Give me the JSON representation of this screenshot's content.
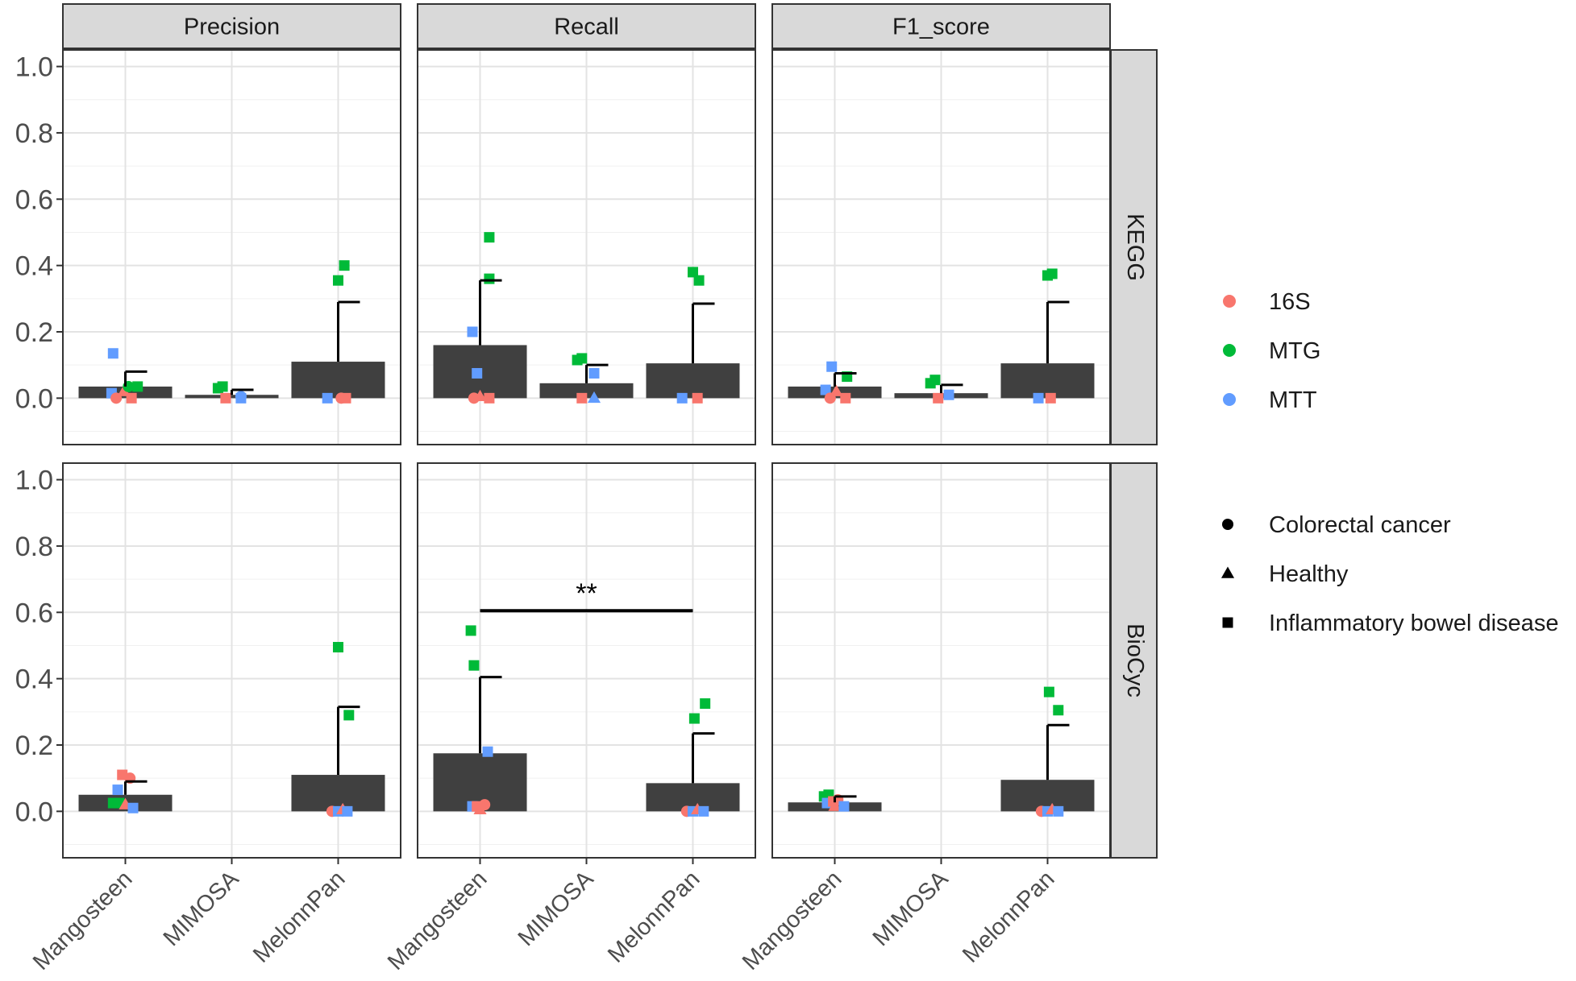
{
  "chart_data": {
    "type": "bar",
    "title": "",
    "xlabel": "",
    "ylabel": "",
    "ylim": [
      -0.14,
      1.05
    ],
    "yticks": [
      0.0,
      0.2,
      0.4,
      0.6,
      0.8,
      1.0
    ],
    "ytick_labels": [
      "0.0",
      "0.2",
      "0.4",
      "0.6",
      "0.8",
      "1.0"
    ],
    "categories": [
      "Mangosteen",
      "MIMOSA",
      "MelonnPan"
    ],
    "metrics": [
      "Precision",
      "Recall",
      "F1_score"
    ],
    "databases": [
      "KEGG",
      "BioCyc"
    ],
    "legend_color": {
      "items": [
        {
          "label": "16S",
          "color": "#F8766D"
        },
        {
          "label": "MTG",
          "color": "#00BA38"
        },
        {
          "label": "MTT",
          "color": "#619CFF"
        }
      ]
    },
    "legend_shape": {
      "items": [
        {
          "label": "Colorectal cancer",
          "shape": "circle"
        },
        {
          "label": "Healthy",
          "shape": "triangle"
        },
        {
          "label": "Inflammatory bowel disease",
          "shape": "square"
        }
      ]
    },
    "bar_color": "#404040",
    "panels": [
      {
        "metric": "Precision",
        "database": "KEGG",
        "bars": [
          {
            "category": "Mangosteen",
            "mean": 0.035,
            "upper": 0.08
          },
          {
            "category": "MIMOSA",
            "mean": 0.01,
            "upper": 0.025
          },
          {
            "category": "MelonnPan",
            "mean": 0.11,
            "upper": 0.29
          }
        ],
        "points": [
          {
            "category": "Mangosteen",
            "j": -0.4,
            "y": 0.135,
            "source": "MTT",
            "shape": "square"
          },
          {
            "category": "Mangosteen",
            "j": -0.45,
            "y": 0.015,
            "source": "MTT",
            "shape": "square"
          },
          {
            "category": "Mangosteen",
            "j": -0.3,
            "y": 0.0,
            "source": "16S",
            "shape": "circle"
          },
          {
            "category": "Mangosteen",
            "j": -0.05,
            "y": 0.02,
            "source": "16S",
            "shape": "triangle"
          },
          {
            "category": "Mangosteen",
            "j": 0.2,
            "y": 0.0,
            "source": "16S",
            "shape": "square"
          },
          {
            "category": "Mangosteen",
            "j": 0.1,
            "y": 0.035,
            "source": "MTG",
            "shape": "circle"
          },
          {
            "category": "Mangosteen",
            "j": 0.4,
            "y": 0.035,
            "source": "MTG",
            "shape": "square"
          },
          {
            "category": "MIMOSA",
            "j": -0.45,
            "y": 0.03,
            "source": "MTG",
            "shape": "square"
          },
          {
            "category": "MIMOSA",
            "j": -0.3,
            "y": 0.035,
            "source": "MTG",
            "shape": "square"
          },
          {
            "category": "MIMOSA",
            "j": -0.2,
            "y": 0.0,
            "source": "16S",
            "shape": "square"
          },
          {
            "category": "MIMOSA",
            "j": 0.3,
            "y": 0.005,
            "source": "MTT",
            "shape": "circle"
          },
          {
            "category": "MIMOSA",
            "j": 0.3,
            "y": 0.0,
            "source": "MTT",
            "shape": "square"
          },
          {
            "category": "MelonnPan",
            "j": -0.35,
            "y": 0.0,
            "source": "MTT",
            "shape": "square"
          },
          {
            "category": "MelonnPan",
            "j": 0.1,
            "y": 0.0,
            "source": "16S",
            "shape": "circle"
          },
          {
            "category": "MelonnPan",
            "j": 0.25,
            "y": 0.0,
            "source": "16S",
            "shape": "square"
          },
          {
            "category": "MelonnPan",
            "j": 0.0,
            "y": 0.355,
            "source": "MTG",
            "shape": "square"
          },
          {
            "category": "MelonnPan",
            "j": 0.2,
            "y": 0.4,
            "source": "MTG",
            "shape": "square"
          }
        ]
      },
      {
        "metric": "Recall",
        "database": "KEGG",
        "bars": [
          {
            "category": "Mangosteen",
            "mean": 0.16,
            "upper": 0.355
          },
          {
            "category": "MIMOSA",
            "mean": 0.045,
            "upper": 0.1
          },
          {
            "category": "MelonnPan",
            "mean": 0.105,
            "upper": 0.285
          }
        ],
        "points": [
          {
            "category": "Mangosteen",
            "j": -0.25,
            "y": 0.2,
            "source": "MTT",
            "shape": "square"
          },
          {
            "category": "Mangosteen",
            "j": -0.1,
            "y": 0.075,
            "source": "MTT",
            "shape": "square"
          },
          {
            "category": "Mangosteen",
            "j": -0.2,
            "y": 0.0,
            "source": "16S",
            "shape": "circle"
          },
          {
            "category": "Mangosteen",
            "j": 0.0,
            "y": 0.005,
            "source": "16S",
            "shape": "triangle"
          },
          {
            "category": "Mangosteen",
            "j": 0.3,
            "y": 0.0,
            "source": "16S",
            "shape": "square"
          },
          {
            "category": "Mangosteen",
            "j": 0.3,
            "y": 0.36,
            "source": "MTG",
            "shape": "square"
          },
          {
            "category": "Mangosteen",
            "j": 0.3,
            "y": 0.485,
            "source": "MTG",
            "shape": "square"
          },
          {
            "category": "MIMOSA",
            "j": -0.3,
            "y": 0.115,
            "source": "MTG",
            "shape": "square"
          },
          {
            "category": "MIMOSA",
            "j": -0.15,
            "y": 0.12,
            "source": "MTG",
            "shape": "square"
          },
          {
            "category": "MIMOSA",
            "j": -0.15,
            "y": 0.0,
            "source": "16S",
            "shape": "square"
          },
          {
            "category": "MIMOSA",
            "j": 0.25,
            "y": 0.075,
            "source": "MTT",
            "shape": "square"
          },
          {
            "category": "MIMOSA",
            "j": 0.25,
            "y": 0.0,
            "source": "MTT",
            "shape": "triangle"
          },
          {
            "category": "MelonnPan",
            "j": -0.35,
            "y": 0.0,
            "source": "MTT",
            "shape": "square"
          },
          {
            "category": "MelonnPan",
            "j": 0.15,
            "y": 0.0,
            "source": "16S",
            "shape": "square"
          },
          {
            "category": "MelonnPan",
            "j": 0.0,
            "y": 0.38,
            "source": "MTG",
            "shape": "square"
          },
          {
            "category": "MelonnPan",
            "j": 0.2,
            "y": 0.355,
            "source": "MTG",
            "shape": "square"
          }
        ]
      },
      {
        "metric": "F1_score",
        "database": "KEGG",
        "bars": [
          {
            "category": "Mangosteen",
            "mean": 0.035,
            "upper": 0.075
          },
          {
            "category": "MIMOSA",
            "mean": 0.015,
            "upper": 0.04
          },
          {
            "category": "MelonnPan",
            "mean": 0.105,
            "upper": 0.29
          }
        ],
        "points": [
          {
            "category": "Mangosteen",
            "j": -0.1,
            "y": 0.095,
            "source": "MTT",
            "shape": "square"
          },
          {
            "category": "Mangosteen",
            "j": -0.3,
            "y": 0.025,
            "source": "MTT",
            "shape": "square"
          },
          {
            "category": "Mangosteen",
            "j": -0.15,
            "y": 0.0,
            "source": "16S",
            "shape": "circle"
          },
          {
            "category": "Mangosteen",
            "j": 0.05,
            "y": 0.02,
            "source": "16S",
            "shape": "triangle"
          },
          {
            "category": "Mangosteen",
            "j": 0.35,
            "y": 0.0,
            "source": "16S",
            "shape": "square"
          },
          {
            "category": "Mangosteen",
            "j": 0.4,
            "y": 0.065,
            "source": "MTG",
            "shape": "square"
          },
          {
            "category": "MIMOSA",
            "j": -0.35,
            "y": 0.045,
            "source": "MTG",
            "shape": "square"
          },
          {
            "category": "MIMOSA",
            "j": -0.2,
            "y": 0.055,
            "source": "MTG",
            "shape": "square"
          },
          {
            "category": "MIMOSA",
            "j": -0.1,
            "y": 0.0,
            "source": "16S",
            "shape": "square"
          },
          {
            "category": "MIMOSA",
            "j": 0.25,
            "y": 0.01,
            "source": "MTT",
            "shape": "square"
          },
          {
            "category": "MelonnPan",
            "j": -0.3,
            "y": 0.0,
            "source": "MTT",
            "shape": "square"
          },
          {
            "category": "MelonnPan",
            "j": 0.1,
            "y": 0.0,
            "source": "16S",
            "shape": "square"
          },
          {
            "category": "MelonnPan",
            "j": 0.0,
            "y": 0.37,
            "source": "MTG",
            "shape": "square"
          },
          {
            "category": "MelonnPan",
            "j": 0.15,
            "y": 0.375,
            "source": "MTG",
            "shape": "square"
          }
        ]
      },
      {
        "metric": "Precision",
        "database": "BioCyc",
        "bars": [
          {
            "category": "Mangosteen",
            "mean": 0.05,
            "upper": 0.09
          },
          {
            "category": "MelonnPan",
            "mean": 0.11,
            "upper": 0.315
          }
        ],
        "points": [
          {
            "category": "Mangosteen",
            "j": -0.1,
            "y": 0.11,
            "source": "16S",
            "shape": "square"
          },
          {
            "category": "Mangosteen",
            "j": 0.15,
            "y": 0.1,
            "source": "16S",
            "shape": "circle"
          },
          {
            "category": "Mangosteen",
            "j": -0.25,
            "y": 0.065,
            "source": "MTT",
            "shape": "square"
          },
          {
            "category": "Mangosteen",
            "j": -0.4,
            "y": 0.025,
            "source": "MTG",
            "shape": "square"
          },
          {
            "category": "Mangosteen",
            "j": -0.2,
            "y": 0.025,
            "source": "MTG",
            "shape": "square"
          },
          {
            "category": "Mangosteen",
            "j": 0.0,
            "y": 0.02,
            "source": "16S",
            "shape": "triangle"
          },
          {
            "category": "Mangosteen",
            "j": 0.25,
            "y": 0.01,
            "source": "MTT",
            "shape": "square"
          },
          {
            "category": "MelonnPan",
            "j": -0.2,
            "y": 0.0,
            "source": "16S",
            "shape": "circle"
          },
          {
            "category": "MelonnPan",
            "j": 0.0,
            "y": 0.0,
            "source": "MTT",
            "shape": "square"
          },
          {
            "category": "MelonnPan",
            "j": 0.15,
            "y": 0.005,
            "source": "16S",
            "shape": "triangle"
          },
          {
            "category": "MelonnPan",
            "j": 0.3,
            "y": 0.0,
            "source": "MTT",
            "shape": "square"
          },
          {
            "category": "MelonnPan",
            "j": 0.0,
            "y": 0.495,
            "source": "MTG",
            "shape": "square"
          },
          {
            "category": "MelonnPan",
            "j": 0.35,
            "y": 0.29,
            "source": "MTG",
            "shape": "square"
          }
        ]
      },
      {
        "metric": "Recall",
        "database": "BioCyc",
        "bars": [
          {
            "category": "Mangosteen",
            "mean": 0.175,
            "upper": 0.405
          },
          {
            "category": "MelonnPan",
            "mean": 0.085,
            "upper": 0.235
          }
        ],
        "points": [
          {
            "category": "Mangosteen",
            "j": -0.3,
            "y": 0.545,
            "source": "MTG",
            "shape": "square"
          },
          {
            "category": "Mangosteen",
            "j": -0.2,
            "y": 0.44,
            "source": "MTG",
            "shape": "square"
          },
          {
            "category": "Mangosteen",
            "j": 0.25,
            "y": 0.18,
            "source": "MTT",
            "shape": "square"
          },
          {
            "category": "Mangosteen",
            "j": -0.25,
            "y": 0.015,
            "source": "MTT",
            "shape": "square"
          },
          {
            "category": "Mangosteen",
            "j": -0.1,
            "y": 0.015,
            "source": "16S",
            "shape": "square"
          },
          {
            "category": "Mangosteen",
            "j": 0.0,
            "y": 0.005,
            "source": "16S",
            "shape": "triangle"
          },
          {
            "category": "Mangosteen",
            "j": 0.15,
            "y": 0.02,
            "source": "16S",
            "shape": "circle"
          },
          {
            "category": "MelonnPan",
            "j": -0.2,
            "y": 0.0,
            "source": "16S",
            "shape": "circle"
          },
          {
            "category": "MelonnPan",
            "j": 0.0,
            "y": 0.0,
            "source": "MTT",
            "shape": "square"
          },
          {
            "category": "MelonnPan",
            "j": 0.15,
            "y": 0.005,
            "source": "16S",
            "shape": "triangle"
          },
          {
            "category": "MelonnPan",
            "j": 0.35,
            "y": 0.0,
            "source": "MTT",
            "shape": "square"
          },
          {
            "category": "MelonnPan",
            "j": 0.05,
            "y": 0.28,
            "source": "MTG",
            "shape": "square"
          },
          {
            "category": "MelonnPan",
            "j": 0.4,
            "y": 0.325,
            "source": "MTG",
            "shape": "square"
          }
        ],
        "significance": {
          "from": "Mangosteen",
          "to": "MelonnPan",
          "y": 0.605,
          "label": "**"
        }
      },
      {
        "metric": "F1_score",
        "database": "BioCyc",
        "bars": [
          {
            "category": "Mangosteen",
            "mean": 0.027,
            "upper": 0.045
          },
          {
            "category": "MelonnPan",
            "mean": 0.095,
            "upper": 0.26
          }
        ],
        "points": [
          {
            "category": "Mangosteen",
            "j": -0.35,
            "y": 0.045,
            "source": "MTG",
            "shape": "square"
          },
          {
            "category": "Mangosteen",
            "j": -0.2,
            "y": 0.05,
            "source": "MTG",
            "shape": "square"
          },
          {
            "category": "Mangosteen",
            "j": -0.25,
            "y": 0.025,
            "source": "MTT",
            "shape": "square"
          },
          {
            "category": "Mangosteen",
            "j": 0.0,
            "y": 0.015,
            "source": "16S",
            "shape": "triangle"
          },
          {
            "category": "Mangosteen",
            "j": 0.1,
            "y": 0.035,
            "source": "16S",
            "shape": "circle"
          },
          {
            "category": "Mangosteen",
            "j": -0.05,
            "y": 0.03,
            "source": "16S",
            "shape": "square"
          },
          {
            "category": "Mangosteen",
            "j": 0.3,
            "y": 0.015,
            "source": "MTT",
            "shape": "square"
          },
          {
            "category": "MelonnPan",
            "j": -0.2,
            "y": 0.0,
            "source": "16S",
            "shape": "circle"
          },
          {
            "category": "MelonnPan",
            "j": 0.0,
            "y": 0.0,
            "source": "MTT",
            "shape": "square"
          },
          {
            "category": "MelonnPan",
            "j": 0.15,
            "y": 0.005,
            "source": "16S",
            "shape": "triangle"
          },
          {
            "category": "MelonnPan",
            "j": 0.35,
            "y": 0.0,
            "source": "MTT",
            "shape": "square"
          },
          {
            "category": "MelonnPan",
            "j": 0.05,
            "y": 0.36,
            "source": "MTG",
            "shape": "square"
          },
          {
            "category": "MelonnPan",
            "j": 0.35,
            "y": 0.305,
            "source": "MTG",
            "shape": "square"
          }
        ]
      }
    ]
  }
}
